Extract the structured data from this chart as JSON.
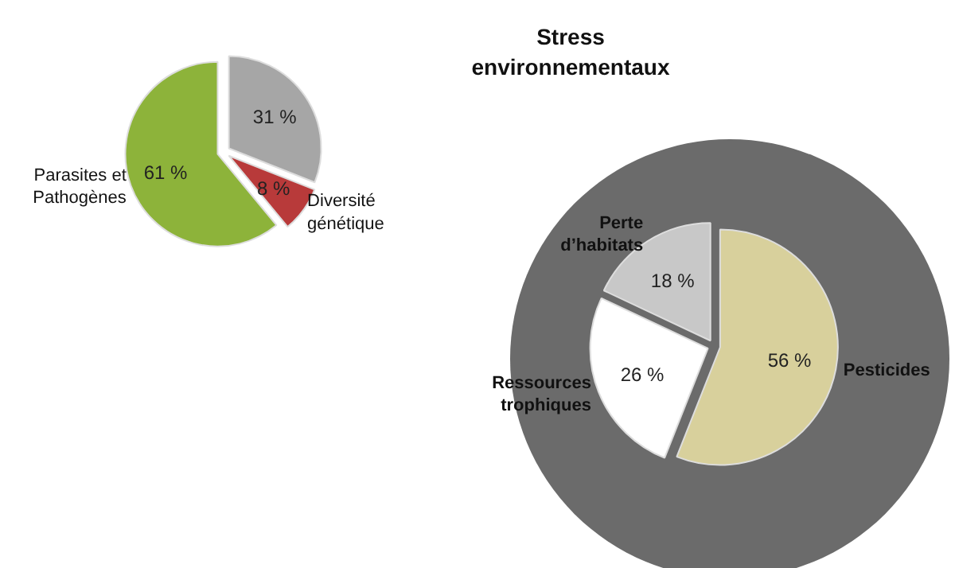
{
  "chart_data": [
    {
      "type": "pie",
      "categories": [
        null,
        "Diversité\ngénétique",
        "Parasites et\nPathogènes"
      ],
      "values": [
        31,
        8,
        61
      ],
      "colors": [
        "#a6a6a6",
        "#b83a3a",
        "#8db33a"
      ],
      "value_labels": [
        "31 %",
        "8 %",
        "61 %"
      ]
    },
    {
      "type": "pie",
      "title": "Stress\nenvironnementaux",
      "categories": [
        "Pesticides",
        "Ressources\ntrophiques",
        "Perte\nd’habitats"
      ],
      "values": [
        56,
        26,
        18
      ],
      "colors": [
        "#d8d09c",
        "#ffffff",
        "#c8c8c8"
      ],
      "value_labels": [
        "56 %",
        "26 %",
        "18 %"
      ]
    }
  ]
}
